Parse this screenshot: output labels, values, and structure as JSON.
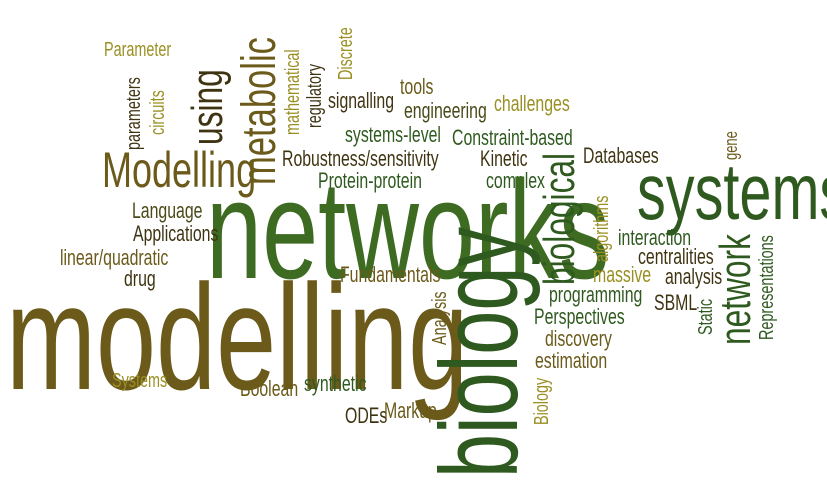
{
  "palette": {
    "dark_green": "#2f5a1f",
    "mid_green": "#3d6b22",
    "olive_brown": "#6b5a1a",
    "dark_olive": "#4a4a18",
    "khaki": "#9a8f22",
    "dark_brown": "#3f3412"
  },
  "words": {
    "parameter": "Parameter",
    "parameters": "parameters",
    "circuits": "circuits",
    "using": "using",
    "metabolic": "metabolic",
    "mathematical": "mathematical",
    "regulatory": "regulatory",
    "discrete": "Discrete",
    "signalling": "signalling",
    "tools": "tools",
    "engineering": "engineering",
    "challenges": "challenges",
    "systems_level": "systems-level",
    "constraint_based": "Constraint-based",
    "gene": "gene",
    "modelling_cap": "Modelling",
    "robustness": "Robustness/sensitivity",
    "kinetic": "Kinetic",
    "databases": "Databases",
    "biological": "biological",
    "protein_protein": "Protein-protein",
    "complex": "complex",
    "systems": "systems",
    "language": "Language",
    "networks": "networks",
    "algorithms": "algorithms",
    "applications": "Applications",
    "interaction": "interaction",
    "linear_quadratic": "linear/quadratic",
    "network": "network",
    "representations": "Representations",
    "centralities": "centralities",
    "drug": "drug",
    "massive": "massive",
    "analysis_lower": "analysis",
    "fundamentals": "Fundamentals",
    "modelling": "modelling",
    "programming": "programming",
    "sbml": "SBML",
    "static": "Static",
    "analysis_cap": "Analysis",
    "perspectives": "Perspectives",
    "biology": "biology",
    "discovery": "discovery",
    "estimation": "estimation",
    "systems_cap": "Systems",
    "boolean": "Boolean",
    "synthetic": "synthetic",
    "biology_cap": "Biology",
    "odes": "ODEs",
    "markup": "Markup"
  }
}
